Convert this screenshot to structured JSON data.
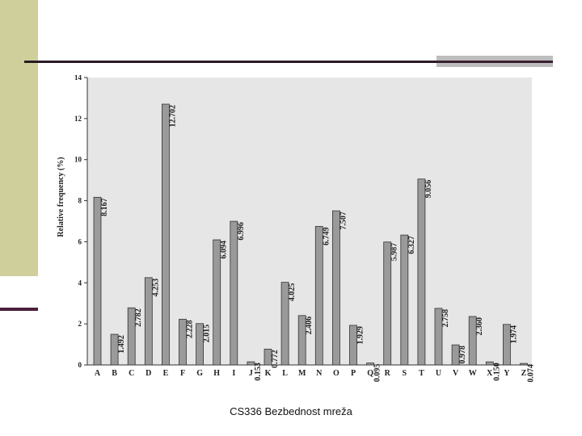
{
  "footer": {
    "text": "CS336  Bezbednost mreža"
  },
  "colors": {
    "plot_background": "#e6e6e6",
    "bar_fill": "#9a9a9a",
    "bar_stroke": "#333333",
    "accent_band": "#cfcf9b",
    "accent_rule": "#4b1f3a"
  },
  "chart_data": {
    "type": "bar",
    "ylabel": "Relative frequency (%)",
    "xlabel": "",
    "ylim": [
      0,
      14
    ],
    "yticks": [
      0,
      2,
      4,
      6,
      8,
      10,
      12,
      14
    ],
    "grid": false,
    "categories": [
      "A",
      "B",
      "C",
      "D",
      "E",
      "F",
      "G",
      "H",
      "I",
      "J",
      "K",
      "L",
      "M",
      "N",
      "O",
      "P",
      "Q",
      "R",
      "S",
      "T",
      "U",
      "V",
      "W",
      "X",
      "Y",
      "Z"
    ],
    "values": [
      8.167,
      1.492,
      2.782,
      4.253,
      12.702,
      2.228,
      2.015,
      6.094,
      6.996,
      0.153,
      0.772,
      4.025,
      2.406,
      6.749,
      7.507,
      1.929,
      0.095,
      5.987,
      6.327,
      9.056,
      2.758,
      0.978,
      2.36,
      0.15,
      1.974,
      0.074
    ],
    "value_labels": [
      "8.167",
      "1.492",
      "2.782",
      "4.253",
      "12.702",
      "2.228",
      "2.015",
      "6.094",
      "6.996",
      "0.153",
      "0.772",
      "4.025",
      "2.406",
      "6.749",
      "7.507",
      "1.929",
      "0.095",
      "5.987",
      "6.327",
      "9.056",
      "2.758",
      "0.978",
      "2.360",
      "0.150",
      "1.974",
      "0.074"
    ]
  }
}
